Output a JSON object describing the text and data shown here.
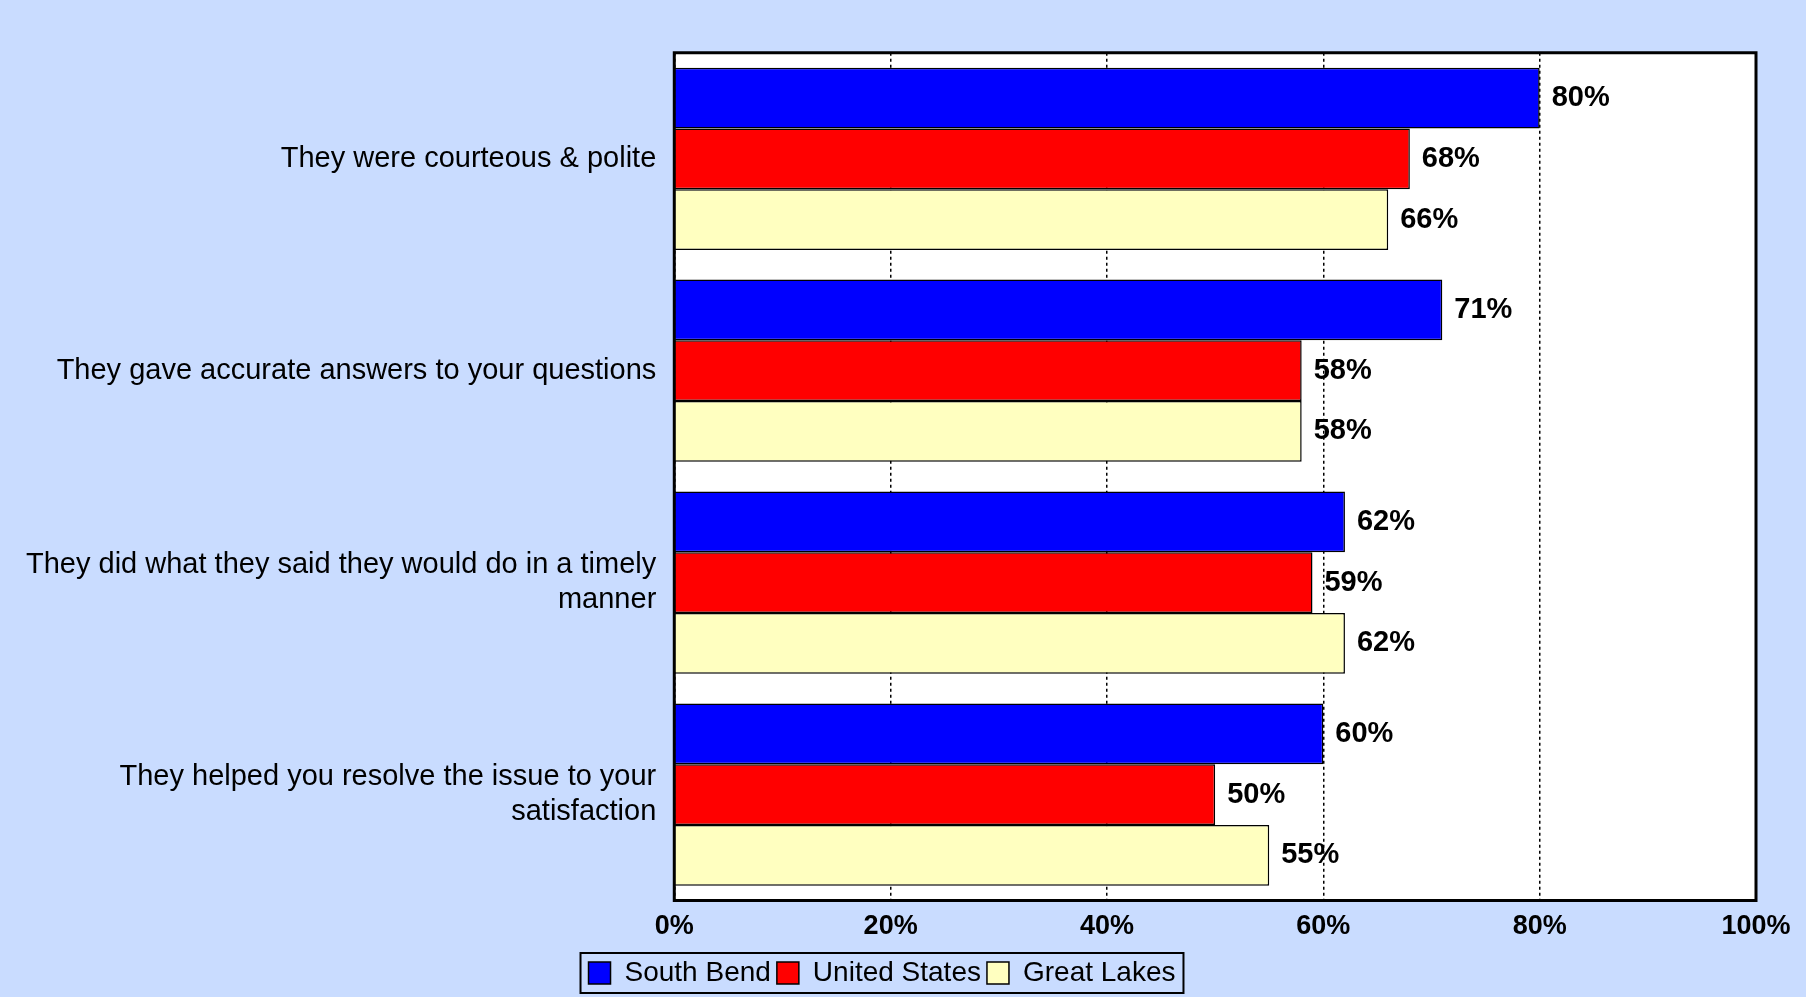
{
  "chart_data": {
    "type": "bar",
    "orientation": "horizontal",
    "categories": [
      "They were courteous & polite",
      "They gave accurate answers to your questions",
      "They did what they said they would do in a timely manner",
      "They helped you resolve the issue to your satisfaction"
    ],
    "series": [
      {
        "name": "South Bend",
        "color": "#0000ff",
        "values": [
          80,
          71,
          62,
          60
        ],
        "value_labels": [
          "80%",
          "71%",
          "62%",
          "60%"
        ]
      },
      {
        "name": "United States",
        "color": "#ff0000",
        "values": [
          68,
          58,
          59,
          50
        ],
        "value_labels": [
          "68%",
          "58%",
          "59%",
          "50%"
        ]
      },
      {
        "name": "Great Lakes",
        "color": "#ffffc0",
        "values": [
          66,
          58,
          62,
          55
        ],
        "value_labels": [
          "66%",
          "58%",
          "62%",
          "55%"
        ]
      }
    ],
    "xlim": [
      0,
      100
    ],
    "xticks": [
      {
        "value": 0,
        "label": "0%"
      },
      {
        "value": 20,
        "label": "20%"
      },
      {
        "value": 40,
        "label": "40%"
      },
      {
        "value": 60,
        "label": "60%"
      },
      {
        "value": 80,
        "label": "80%"
      },
      {
        "value": 100,
        "label": "100%"
      }
    ],
    "grid": "x",
    "legend": "bottom"
  }
}
